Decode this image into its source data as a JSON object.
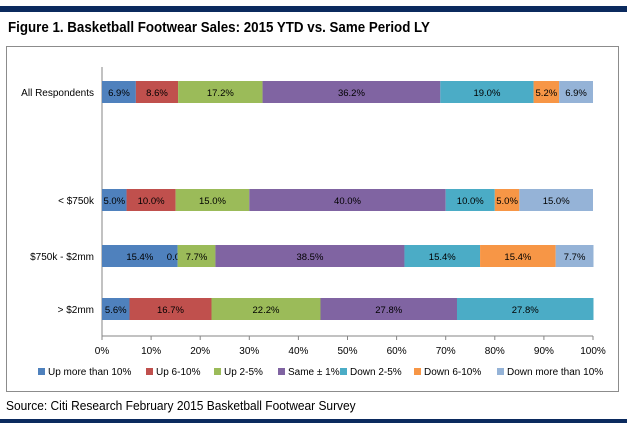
{
  "figure": {
    "title": "Figure 1. Basketball Footwear Sales: 2015 YTD vs. Same Period LY",
    "source": "Source: Citi Research February 2015 Basketball Footwear Survey"
  },
  "chart_data": {
    "type": "bar",
    "orientation": "horizontal",
    "stacked": true,
    "categories": [
      "All Respondents",
      "< $750k",
      "$750k - $2mm",
      "> $2mm"
    ],
    "series": [
      {
        "name": "Up more than 10%",
        "color": "#4f81bd",
        "values": [
          6.9,
          5.0,
          15.4,
          5.6
        ],
        "labels": [
          "6.9%",
          "5.0%",
          "15.4%",
          "5.6%"
        ]
      },
      {
        "name": "Up 6-10%",
        "color": "#c0504d",
        "values": [
          8.6,
          10.0,
          0.0,
          16.7
        ],
        "labels": [
          "8.6%",
          "10.0%",
          "0.0%",
          "16.7%"
        ]
      },
      {
        "name": "Up 2-5%",
        "color": "#9bbb59",
        "values": [
          17.2,
          15.0,
          7.7,
          22.2
        ],
        "labels": [
          "17.2%",
          "15.0%",
          "7.7%",
          "22.2%"
        ]
      },
      {
        "name": "Same ± 1%",
        "color": "#8064a2",
        "values": [
          36.2,
          40.0,
          38.5,
          27.8
        ],
        "labels": [
          "36.2%",
          "40.0%",
          "38.5%",
          "27.8%"
        ]
      },
      {
        "name": "Down 2-5%",
        "color": "#4bacc6",
        "values": [
          19.0,
          10.0,
          15.4,
          27.8
        ],
        "labels": [
          "19.0%",
          "10.0%",
          "15.4%",
          "27.8%"
        ]
      },
      {
        "name": "Down 6-10%",
        "color": "#f79646",
        "values": [
          5.2,
          5.0,
          15.4,
          0.0
        ],
        "labels": [
          "5.2%",
          "5.0%",
          "15.4%",
          ""
        ]
      },
      {
        "name": "Down more than 10%",
        "color": "#95b3d7",
        "values": [
          6.9,
          15.0,
          7.7,
          0.0
        ],
        "labels": [
          "6.9%",
          "15.0%",
          "7.7%",
          ""
        ]
      }
    ],
    "xlim": [
      0,
      100
    ],
    "xticks": [
      "0%",
      "10%",
      "20%",
      "30%",
      "40%",
      "50%",
      "60%",
      "70%",
      "80%",
      "90%",
      "100%"
    ],
    "grid": false,
    "legend": "bottom"
  }
}
